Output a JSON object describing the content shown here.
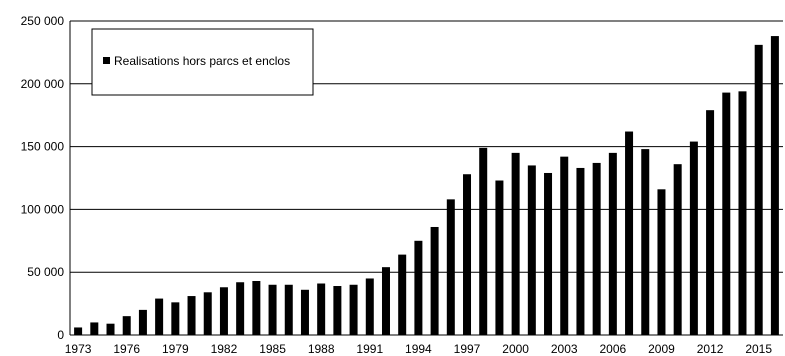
{
  "chart_data": {
    "type": "bar",
    "x": [
      1973,
      1974,
      1975,
      1976,
      1977,
      1978,
      1979,
      1980,
      1981,
      1982,
      1983,
      1984,
      1985,
      1986,
      1987,
      1988,
      1989,
      1990,
      1991,
      1992,
      1993,
      1994,
      1995,
      1996,
      1997,
      1998,
      1999,
      2000,
      2001,
      2002,
      2003,
      2004,
      2005,
      2006,
      2007,
      2008,
      2009,
      2010,
      2011,
      2012,
      2013,
      2014,
      2015,
      2016
    ],
    "values": [
      6000,
      10000,
      9000,
      15000,
      20000,
      29000,
      26000,
      31000,
      34000,
      38000,
      42000,
      43000,
      40000,
      40000,
      36000,
      41000,
      39000,
      40000,
      45000,
      54000,
      64000,
      75000,
      86000,
      108000,
      128000,
      149000,
      123000,
      145000,
      135000,
      129000,
      142000,
      133000,
      137000,
      145000,
      162000,
      148000,
      116000,
      136000,
      154000,
      179000,
      193000,
      194000,
      231000,
      238000
    ],
    "x_tick_labels": [
      "1973",
      "1976",
      "1979",
      "1982",
      "1985",
      "1988",
      "1991",
      "1994",
      "1997",
      "2000",
      "2003",
      "2006",
      "2009",
      "2012",
      "2015"
    ],
    "y_ticks": [
      0,
      50000,
      100000,
      150000,
      200000,
      250000
    ],
    "y_tick_labels": [
      "0",
      "50 000",
      "100 000",
      "150 000",
      "200 000",
      "250 000"
    ],
    "ylim": [
      0,
      250000
    ],
    "xlim": [
      1972.5,
      2016.5
    ],
    "title": "",
    "xlabel": "",
    "ylabel": "",
    "grid": "horizontal",
    "legend_placement": "top-left",
    "series": [
      {
        "name": "Realisations hors parcs et enclos",
        "color": "#000000"
      }
    ]
  }
}
